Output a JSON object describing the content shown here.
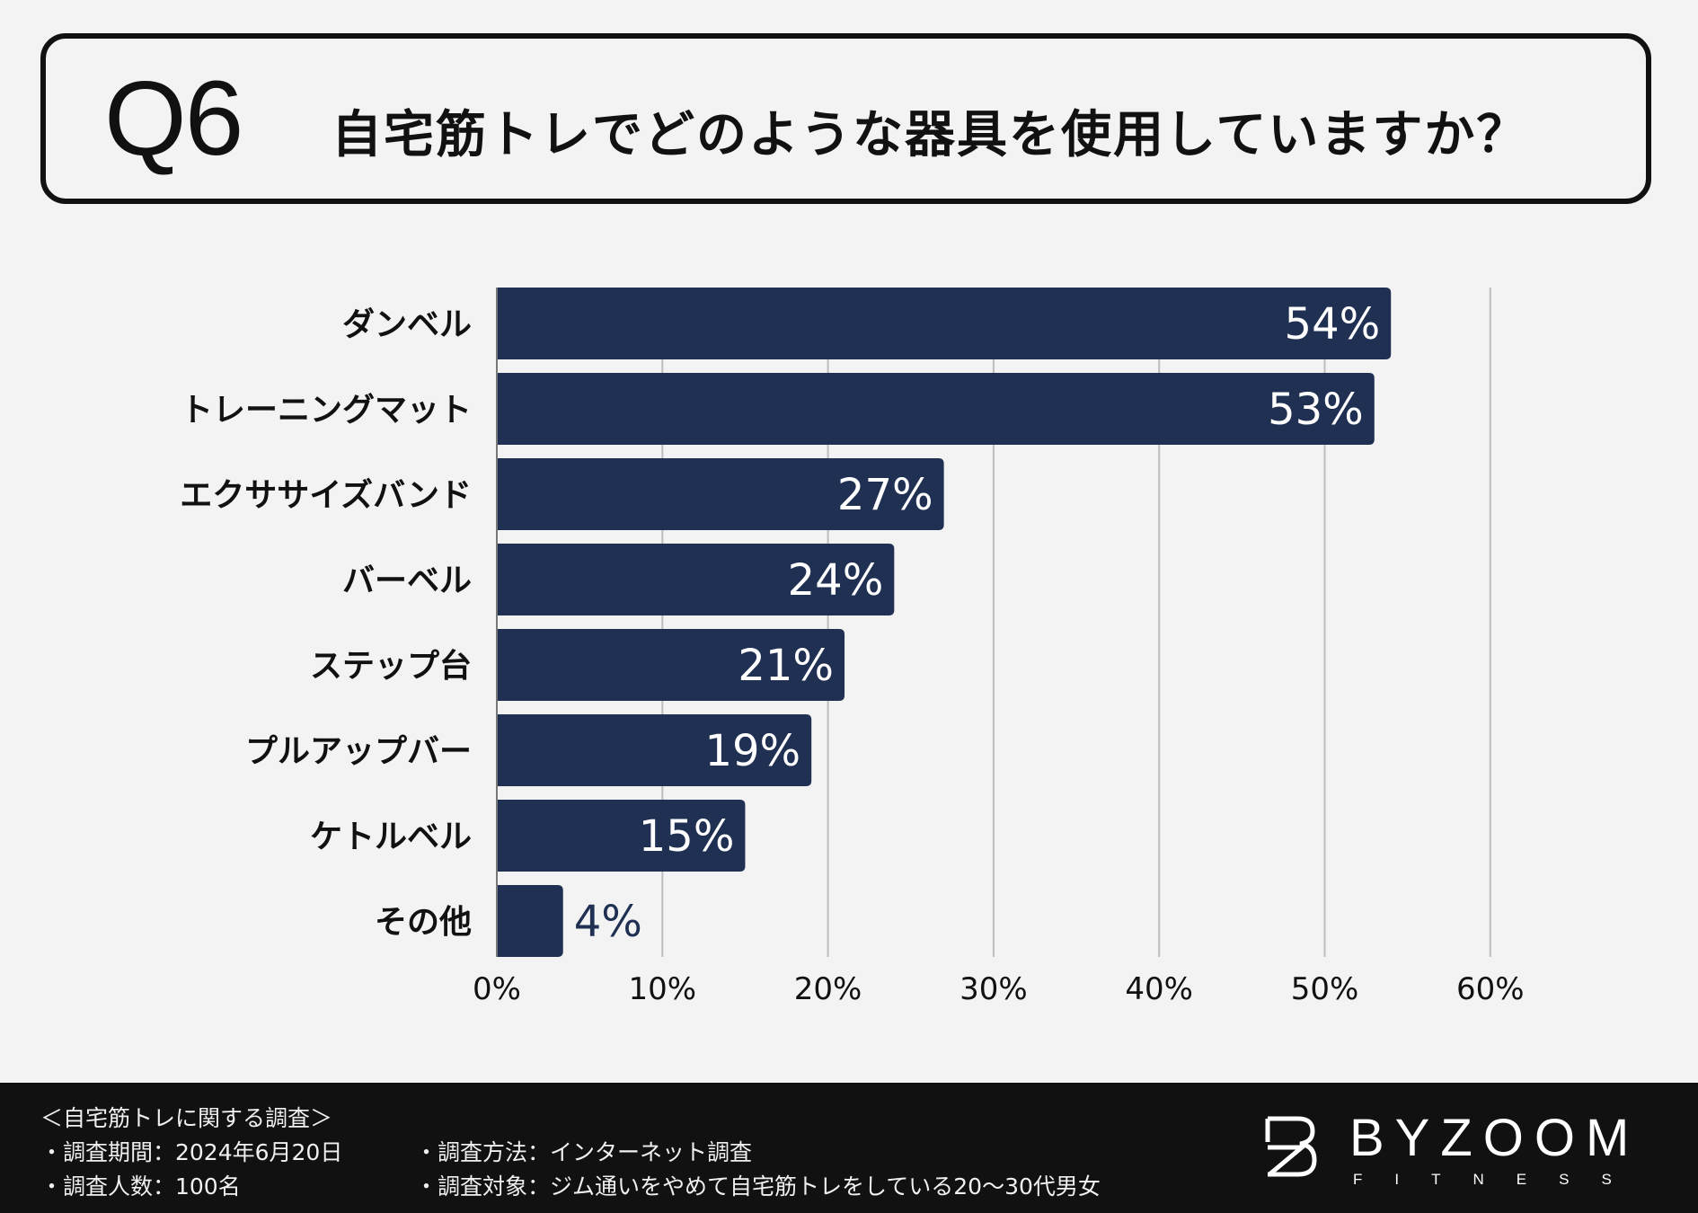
{
  "header": {
    "q_number": "Q6",
    "question": "自宅筋トレでどのような器具を使用していますか？"
  },
  "chart_data": {
    "type": "bar",
    "orientation": "horizontal",
    "title": "自宅筋トレでどのような器具を使用していますか？",
    "categories": [
      "ダンベル",
      "トレーニングマット",
      "エクササイズバンド",
      "バーベル",
      "ステップ台",
      "プルアップバー",
      "ケトルベル",
      "その他"
    ],
    "values": [
      54,
      53,
      27,
      24,
      21,
      19,
      15,
      4
    ],
    "value_labels": [
      "54%",
      "53%",
      "27%",
      "24%",
      "21%",
      "19%",
      "15%",
      "4%"
    ],
    "xlim": [
      0,
      60
    ],
    "xticks": [
      0,
      10,
      20,
      30,
      40,
      50,
      60
    ],
    "xtick_labels": [
      "0%",
      "10%",
      "20%",
      "30%",
      "40%",
      "50%",
      "60%"
    ],
    "grid": true,
    "bar_color": "#1f3052"
  },
  "footer": {
    "survey_title": "＜自宅筋トレに関する調査＞",
    "period": "・調査期間：2024年6月20日",
    "respondents": "・調査人数：100名",
    "method": "・調査方法：インターネット調査",
    "target": "・調査対象：ジム通いをやめて自宅筋トレをしている20～30代男女",
    "logo_name": "BYZOOM",
    "logo_sub": "FITNESS"
  }
}
